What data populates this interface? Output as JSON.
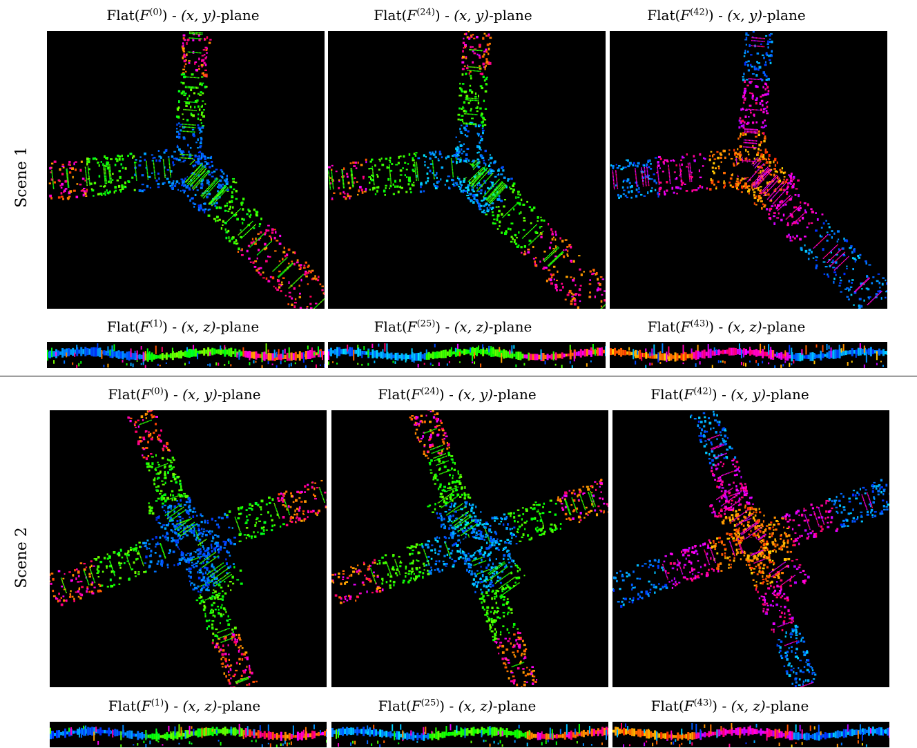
{
  "scenes": [
    {
      "label": "Scene 1",
      "xy": [
        {
          "pre": "Flat(",
          "f": "F",
          "sup": "(0)",
          "post": ") - ",
          "plane": "(x, y)",
          "suffix": "-plane"
        },
        {
          "pre": "Flat(",
          "f": "F",
          "sup": "(24)",
          "post": ") - ",
          "plane": "(x, y)",
          "suffix": "-plane"
        },
        {
          "pre": "Flat(",
          "f": "F",
          "sup": "(42)",
          "post": ") - ",
          "plane": "(x, y)",
          "suffix": "-plane"
        }
      ],
      "xz": [
        {
          "pre": "Flat(",
          "f": "F",
          "sup": "(1)",
          "post": ") - ",
          "plane": "(x, z)",
          "suffix": "-plane"
        },
        {
          "pre": "Flat(",
          "f": "F",
          "sup": "(25)",
          "post": ") - ",
          "plane": "(x, z)",
          "suffix": "-plane"
        },
        {
          "pre": "Flat(",
          "f": "F",
          "sup": "(43)",
          "post": ") - ",
          "plane": "(x, z)",
          "suffix": "-plane"
        }
      ]
    },
    {
      "label": "Scene 2",
      "xy": [
        {
          "pre": "Flat(",
          "f": "F",
          "sup": "(0)",
          "post": ") - ",
          "plane": "(x, y)",
          "suffix": "-plane"
        },
        {
          "pre": "Flat(",
          "f": "F",
          "sup": "(24)",
          "post": ") - ",
          "plane": "(x, y)",
          "suffix": "-plane"
        },
        {
          "pre": "Flat(",
          "f": "F",
          "sup": "(42)",
          "post": ") - ",
          "plane": "(x, y)",
          "suffix": "-plane"
        }
      ],
      "xz": [
        {
          "pre": "Flat(",
          "f": "F",
          "sup": "(1)",
          "post": ") - ",
          "plane": "(x, z)",
          "suffix": "-plane"
        },
        {
          "pre": "Flat(",
          "f": "F",
          "sup": "(25)",
          "post": ") - ",
          "plane": "(x, z)",
          "suffix": "-plane"
        },
        {
          "pre": "Flat(",
          "f": "F",
          "sup": "(43)",
          "post": ") - ",
          "plane": "(x, z)",
          "suffix": "-plane"
        }
      ]
    }
  ],
  "panel_background": "#000000"
}
